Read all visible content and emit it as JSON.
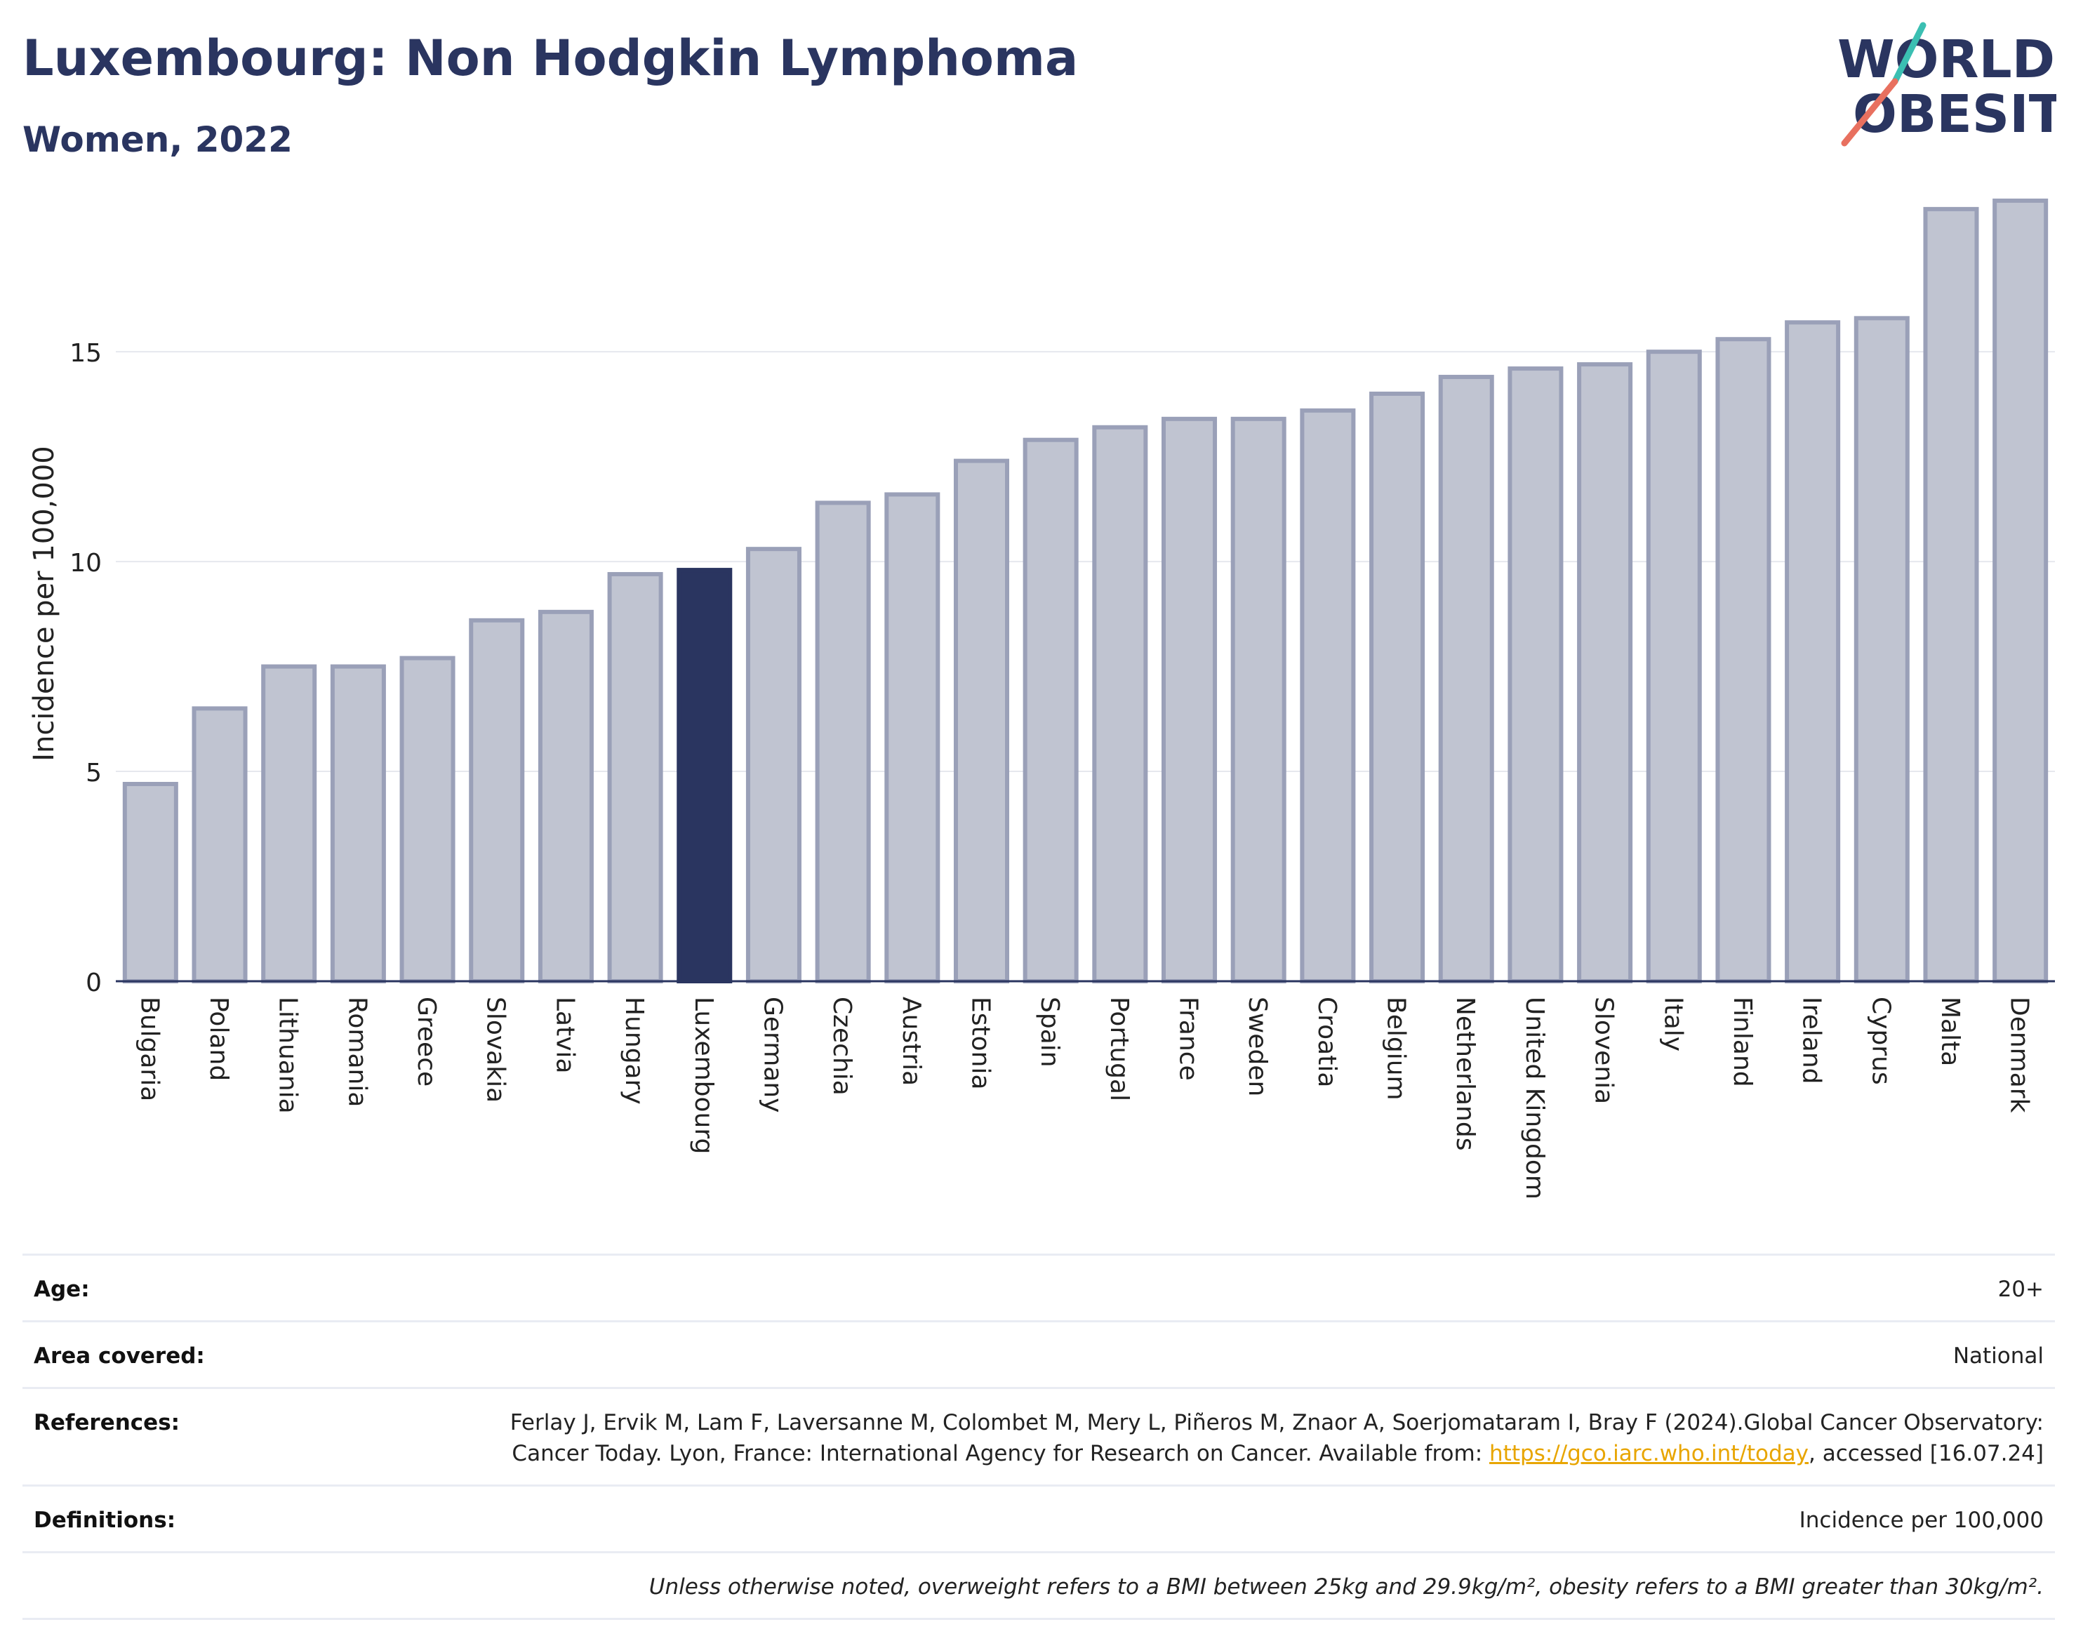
{
  "header": {
    "title": "Luxembourg: Non Hodgkin Lymphoma",
    "subtitle": "Women, 2022",
    "logo_line1": "WORLD",
    "logo_line2": "OBESITY"
  },
  "colors": {
    "bar": "#c0c4d1",
    "bar_border": "#9aa0b8",
    "highlight": "#2a3560",
    "title": "#2a3560",
    "logo_teal": "#3bbfb2",
    "logo_red": "#e8705f",
    "link": "#e8a500"
  },
  "chart_data": {
    "type": "bar",
    "title": "Luxembourg: Non Hodgkin Lymphoma",
    "subtitle": "Women, 2022",
    "xlabel": "",
    "ylabel": "Incidence per 100,000",
    "ylim": [
      0,
      19
    ],
    "yticks": [
      0,
      5,
      10,
      15
    ],
    "grid": true,
    "highlight": "Luxembourg",
    "categories": [
      "Bulgaria",
      "Poland",
      "Lithuania",
      "Romania",
      "Greece",
      "Slovakia",
      "Latvia",
      "Hungary",
      "Luxembourg",
      "Germany",
      "Czechia",
      "Austria",
      "Estonia",
      "Spain",
      "Portugal",
      "France",
      "Sweden",
      "Croatia",
      "Belgium",
      "Netherlands",
      "United Kingdom",
      "Slovenia",
      "Italy",
      "Finland",
      "Ireland",
      "Cyprus",
      "Malta",
      "Denmark"
    ],
    "values": [
      4.7,
      6.5,
      7.5,
      7.5,
      7.7,
      8.6,
      8.8,
      9.7,
      9.8,
      10.3,
      11.4,
      11.6,
      12.4,
      12.9,
      13.2,
      13.4,
      13.4,
      13.6,
      14.0,
      14.4,
      14.6,
      14.7,
      15.0,
      15.3,
      15.7,
      15.8,
      18.4,
      18.6
    ]
  },
  "meta": {
    "age_label": "Age:",
    "age_value": "20+",
    "area_label": "Area covered:",
    "area_value": "National",
    "references_label": "References:",
    "references_text": "Ferlay J, Ervik M, Lam F, Laversanne M, Colombet M, Mery L, Piñeros M, Znaor A, Soerjomataram I, Bray F (2024).Global Cancer Observatory: Cancer Today. Lyon, France: International Agency for Research on Cancer. Available from: ",
    "references_link": "https://gco.iarc.who.int/today",
    "references_suffix": ", accessed [16.07.24]",
    "definitions_label": "Definitions:",
    "definitions_value": "Incidence per 100,000",
    "note": "Unless otherwise noted, overweight refers to a BMI between 25kg and 29.9kg/m², obesity refers to a BMI greater than 30kg/m²."
  }
}
